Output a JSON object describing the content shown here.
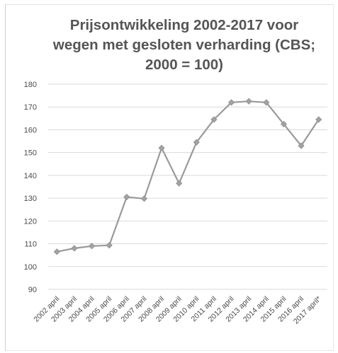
{
  "chart_data": {
    "type": "line",
    "title": "Prijsontwikkeling 2002-2017 voor wegen met gesloten verharding (CBS; 2000 = 100)",
    "title_lines": [
      "Prijsontwikkeling 2002-2017 voor",
      "wegen met gesloten verharding (CBS;",
      "2000 = 100)"
    ],
    "categories": [
      "2002 april",
      "2003 april",
      "2004 april",
      "2005 april",
      "2006 april",
      "2007 april",
      "2008 april",
      "2009 april",
      "2010 april",
      "2011 april",
      "2012 april",
      "2013 april",
      "2014 april",
      "2015 april",
      "2016 april",
      "2017 april*"
    ],
    "series": [
      {
        "values": [
          106.5,
          108,
          109,
          109.3,
          130.5,
          129.8,
          152,
          136.5,
          154.5,
          164.5,
          172,
          172.5,
          172,
          162.5,
          153,
          164.5
        ],
        "color": "#9a9a9a"
      }
    ],
    "ylim": [
      90,
      180
    ],
    "yticks": [
      90,
      100,
      110,
      120,
      130,
      140,
      150,
      160,
      170,
      180
    ],
    "grid": true,
    "xlabel": "",
    "ylabel": ""
  }
}
